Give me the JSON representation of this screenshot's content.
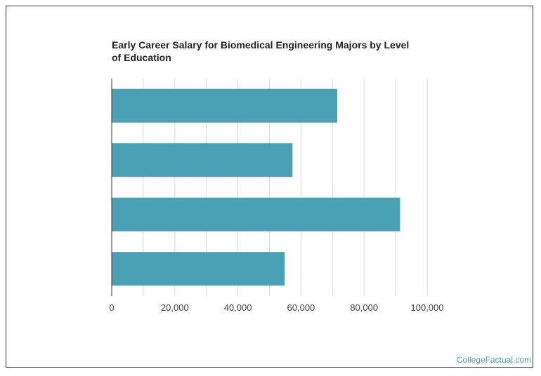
{
  "chart_data": {
    "type": "bar",
    "orientation": "horizontal",
    "title": "Early Career Salary for Biomedical Engineering Majors by Level of Education",
    "categories": [
      "",
      "",
      "",
      ""
    ],
    "values": [
      71500,
      57300,
      91400,
      54800
    ],
    "xlabel": "",
    "ylabel": "",
    "xlim": [
      0,
      100000
    ],
    "x_ticks": [
      0,
      20000,
      40000,
      60000,
      80000,
      100000
    ],
    "x_tick_labels": [
      "0",
      "20,000",
      "40,000",
      "60,000",
      "80,000",
      "100,000"
    ],
    "grid": true,
    "bar_color": "#4aa0b5",
    "grid_color": "#d9d9d9"
  },
  "source": {
    "label": "CollegeFactual.com"
  }
}
